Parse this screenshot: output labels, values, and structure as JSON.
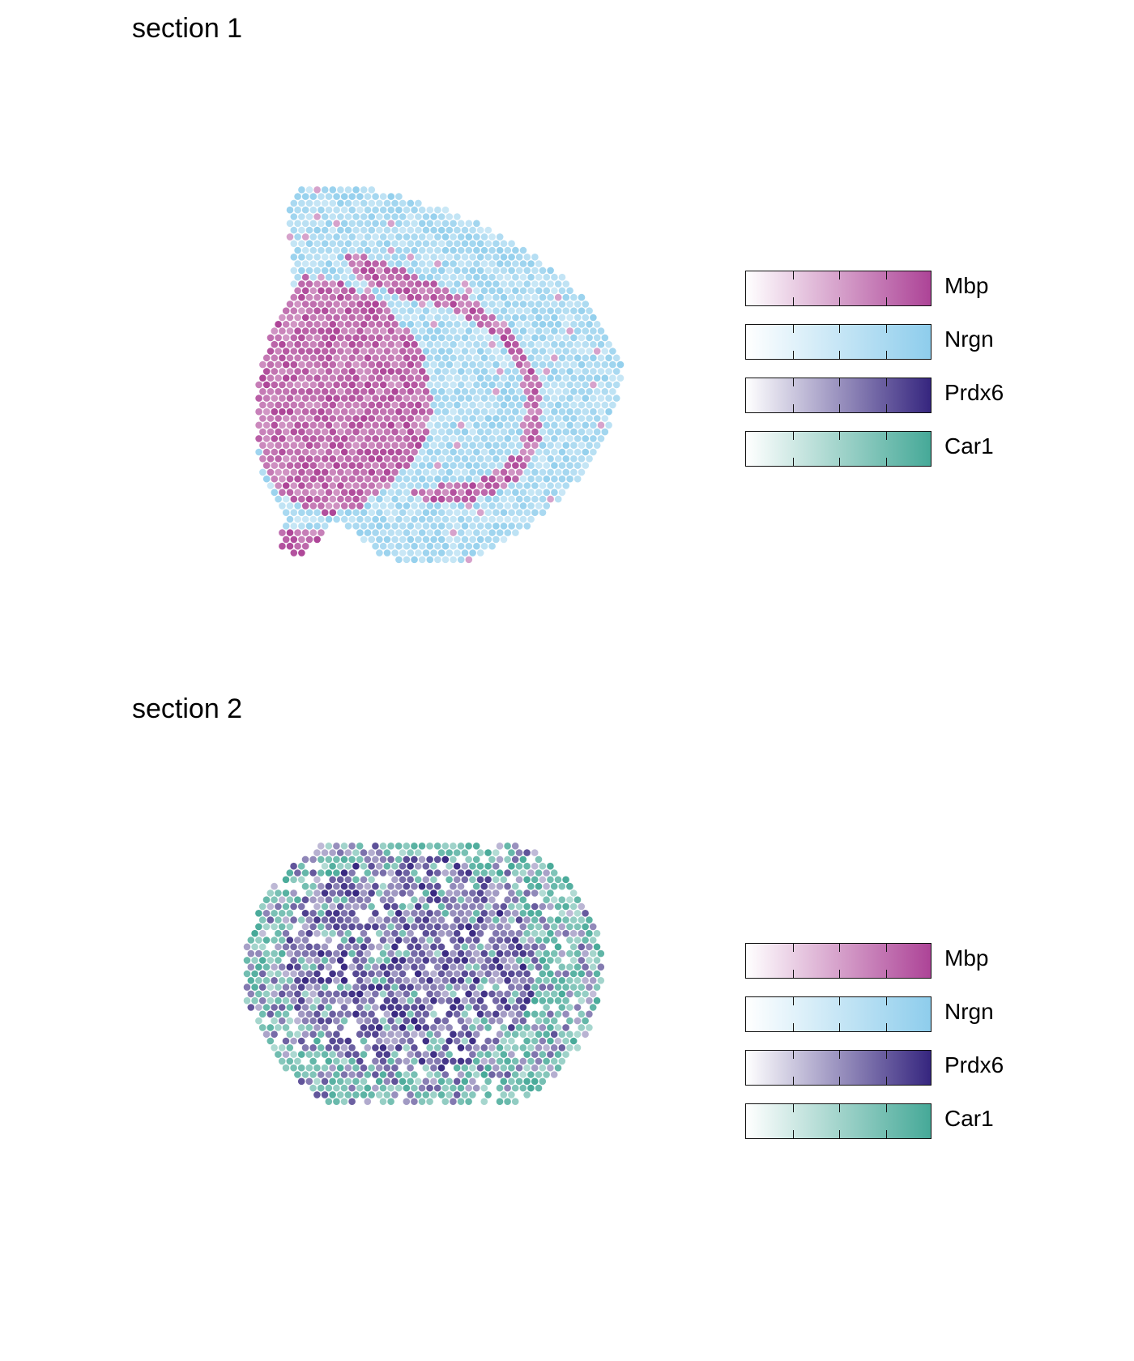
{
  "chart_data": [
    {
      "type": "scatter",
      "title": "section 1",
      "legend": [
        {
          "name": "Mbp",
          "color": "#ad4497"
        },
        {
          "name": "Nrgn",
          "color": "#8ecdec"
        },
        {
          "name": "Prdx6",
          "color": "#36267f"
        },
        {
          "name": "Car1",
          "color": "#46a998"
        }
      ],
      "legend_placement": "right",
      "dominant_features": [
        "Mbp",
        "Nrgn"
      ],
      "grid": false
    },
    {
      "type": "scatter",
      "title": "section 2",
      "legend": [
        {
          "name": "Mbp",
          "color": "#ad4497"
        },
        {
          "name": "Nrgn",
          "color": "#8ecdec"
        },
        {
          "name": "Prdx6",
          "color": "#36267f"
        },
        {
          "name": "Car1",
          "color": "#46a998"
        }
      ],
      "legend_placement": "right",
      "dominant_features": [
        "Prdx6",
        "Car1"
      ],
      "grid": false
    }
  ]
}
